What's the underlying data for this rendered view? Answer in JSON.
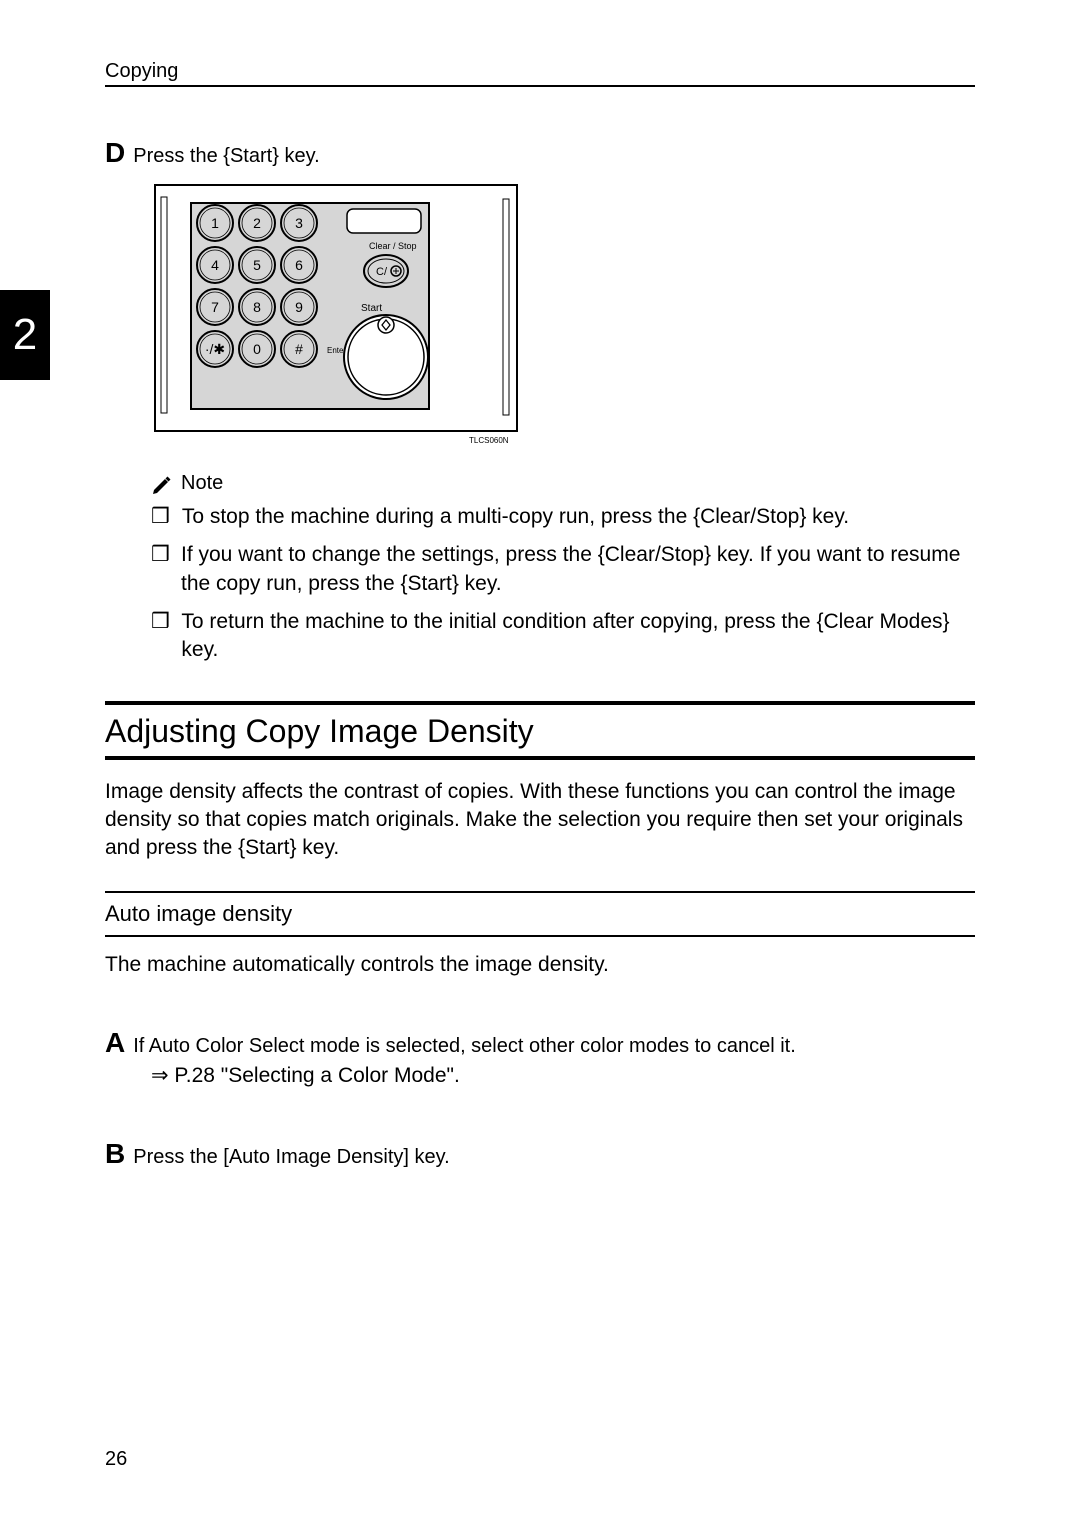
{
  "header": {
    "title": "Copying"
  },
  "side_tab": {
    "number": "2"
  },
  "step_d": {
    "letter": "D",
    "prefix": "Press the ",
    "key_open": "{",
    "key_name": "Start",
    "key_close": "}",
    "suffix": " key."
  },
  "keypad": {
    "buttons": [
      "1",
      "2",
      "3",
      "4",
      "5",
      "6",
      "7",
      "8",
      "9",
      "·/✱",
      "0",
      "#"
    ],
    "button_colors": {
      "fill": "#d6d6d6",
      "stroke": "#000000"
    },
    "enter_label": "Enter",
    "clear_stop_label": "Clear / Stop",
    "clear_stop_btn": "C/",
    "start_label": "Start",
    "code": "TLCS060N",
    "background": "#d6d6d6",
    "border_color": "#000000"
  },
  "note": {
    "label": "Note",
    "items": [
      {
        "bullet": "❒",
        "text_parts": [
          "To stop the machine during a multi-copy run, press the ",
          "{",
          "Clear/Stop",
          "}",
          " key."
        ]
      },
      {
        "bullet": "❒",
        "text_parts": [
          "If you want to change the settings, press the ",
          "{",
          "Clear/Stop",
          "}",
          " key. If you want to resume the copy run, press the ",
          "{",
          "Start",
          "}",
          " key."
        ]
      },
      {
        "bullet": "❒",
        "text_parts": [
          "To return the machine to the initial condition after copying, press the ",
          "{",
          "Clear Modes",
          "}",
          " key."
        ]
      }
    ]
  },
  "section": {
    "title": "Adjusting Copy Image Density",
    "body": "Image density affects the contrast of copies. With these functions you can control the image density so that copies match originals. Make the selection you require then set your originals and press the {Start} key."
  },
  "sub": {
    "title": "Auto image density",
    "body": "The machine automatically controls the image density."
  },
  "step_a": {
    "letter": "A",
    "text": "If Auto Color Select mode is selected, select other color modes to cancel it.",
    "see": "⇒ P.28 \"Selecting a Color Mode\"."
  },
  "step_b": {
    "letter": "B",
    "prefix": "Press the ",
    "key_open": "[",
    "key_name": "Auto Image Density",
    "key_close": "]",
    "suffix": " key."
  },
  "page_number": "26"
}
